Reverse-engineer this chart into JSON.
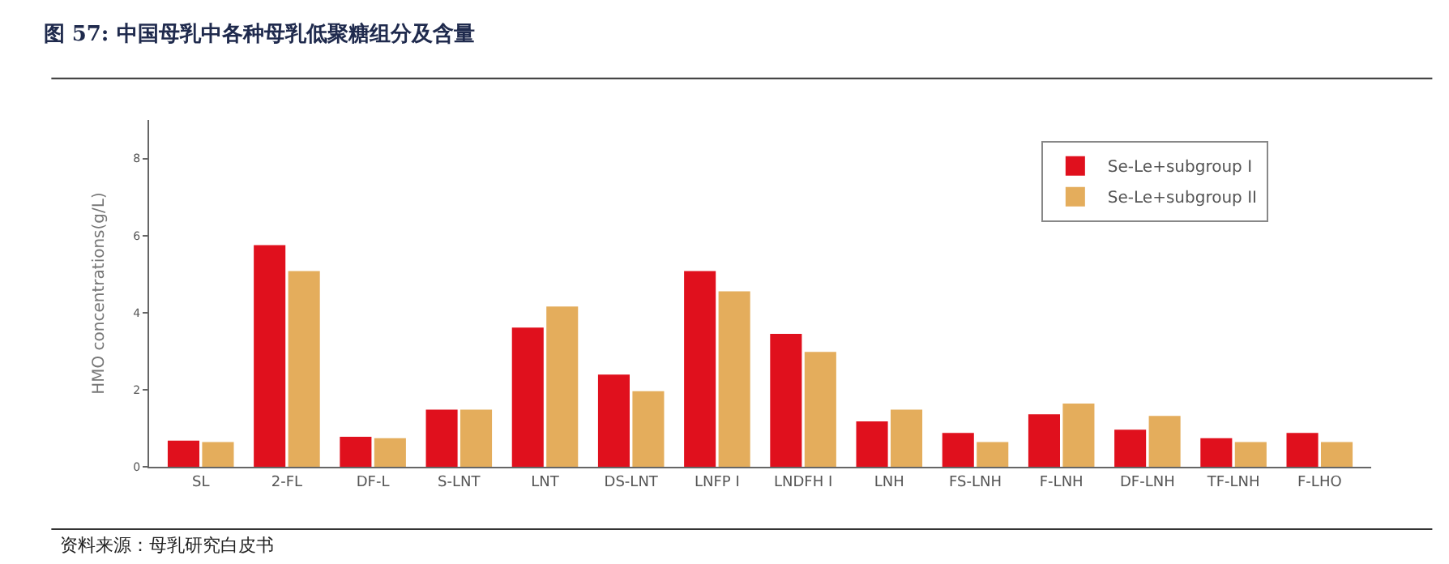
{
  "chart_data": {
    "type": "bar",
    "title": "图 57: 中国母乳中各种母乳低聚糖组分及含量",
    "ylabel": "HMO concentrations(g/L)",
    "categories": [
      "SL",
      "2-FL",
      "DF-L",
      "S-LNT",
      "LNT",
      "DS-LNT",
      "LNFP I",
      "LNDFH I",
      "LNH",
      "FS-LNH",
      "F-LNH",
      "DF-LNH",
      "TF-LNH",
      "F-LHO"
    ],
    "series": [
      {
        "name": "Se-Le+subgroup I",
        "color": "#e0101d",
        "values": [
          0.68,
          5.75,
          0.78,
          1.48,
          3.61,
          2.39,
          5.08,
          3.45,
          1.18,
          0.88,
          1.36,
          0.96,
          0.74,
          0.88
        ]
      },
      {
        "name": "Se-Le+subgroup II",
        "color": "#e4ad5c",
        "values": [
          0.64,
          5.08,
          0.74,
          1.48,
          4.16,
          1.96,
          4.55,
          2.98,
          1.48,
          0.64,
          1.64,
          1.32,
          0.64,
          0.64
        ]
      }
    ],
    "ylim": [
      0,
      9
    ],
    "yticks": [
      0,
      2,
      4,
      6,
      8
    ],
    "legend": "top right",
    "annotations": [
      "资料来源：母乳研究白皮书"
    ]
  }
}
